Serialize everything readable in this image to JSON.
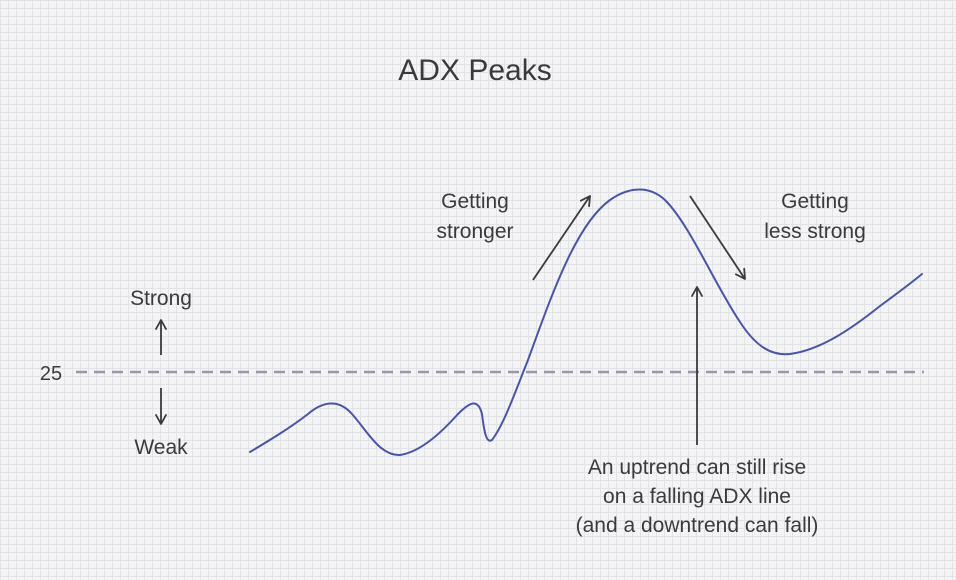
{
  "title": "ADX Peaks",
  "threshold": {
    "value": 25,
    "label": "25"
  },
  "labels": {
    "strong": "Strong",
    "weak": "Weak",
    "getting_stronger": [
      "Getting",
      "stronger"
    ],
    "getting_less_strong": [
      "Getting",
      "less strong"
    ],
    "note": [
      "An uptrend can still rise",
      "on a falling ADX line",
      "(and a downtrend can fall)"
    ]
  },
  "colors": {
    "line": "#4a55a2",
    "threshold": "#9a97aa",
    "text": "#3a3a3c",
    "arrow": "#3a3a3c"
  }
}
